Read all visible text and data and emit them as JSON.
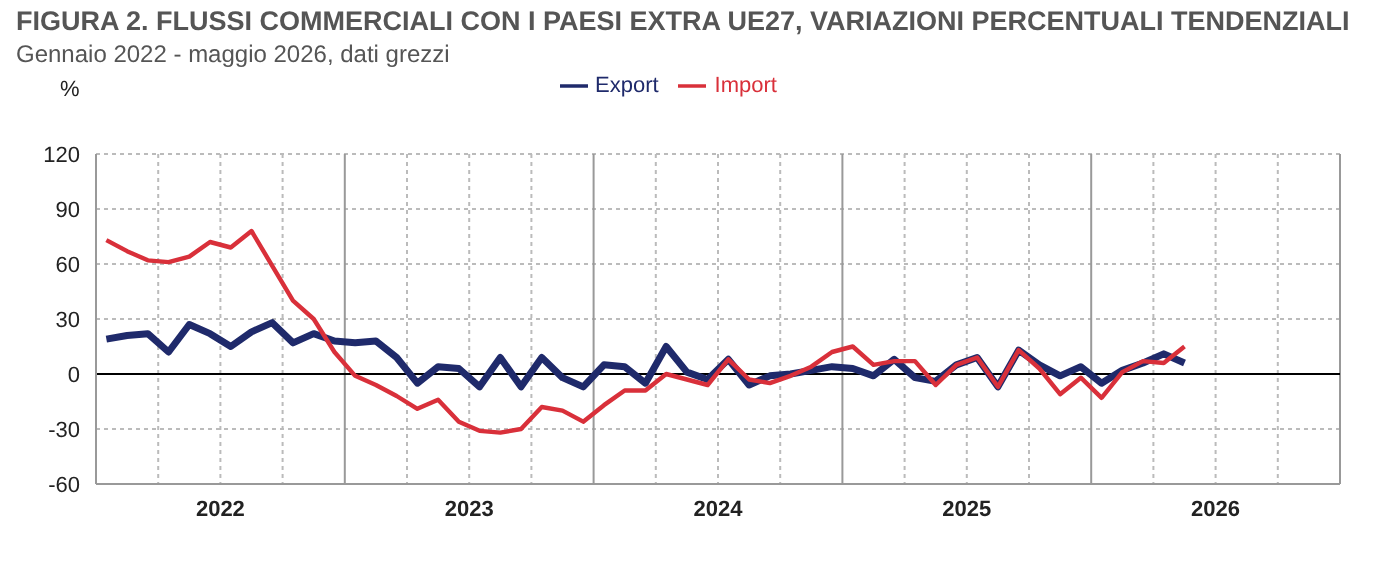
{
  "chart_data": {
    "type": "line",
    "title": "FIGURA 2. FLUSSI COMMERCIALI CON I PAESI EXTRA UE27, VARIAZIONI PERCENTUALI TENDENZIALI",
    "subtitle": "Gennaio 2022 - maggio 2026, dati grezzi",
    "ylabel": "%",
    "x": [
      "2022-01",
      "2022-02",
      "2022-03",
      "2022-04",
      "2022-05",
      "2022-06",
      "2022-07",
      "2022-08",
      "2022-09",
      "2022-10",
      "2022-11",
      "2022-12",
      "2023-01",
      "2023-02",
      "2023-03",
      "2023-04",
      "2023-05",
      "2023-06",
      "2023-07",
      "2023-08",
      "2023-09",
      "2023-10",
      "2023-11",
      "2023-12",
      "2024-01",
      "2024-02",
      "2024-03",
      "2024-04",
      "2024-05",
      "2024-06",
      "2024-07",
      "2024-08",
      "2024-09",
      "2024-10",
      "2024-11",
      "2024-12",
      "2025-01",
      "2025-02",
      "2025-03",
      "2025-04",
      "2025-05",
      "2025-06",
      "2025-07",
      "2025-08",
      "2025-09",
      "2025-10",
      "2025-11",
      "2025-12",
      "2026-01",
      "2026-02",
      "2026-03",
      "2026-04",
      "2026-05"
    ],
    "series": [
      {
        "name": "Export",
        "color": "#1f2a6b",
        "values": [
          19,
          21,
          22,
          12,
          27,
          22,
          15,
          23,
          28,
          17,
          22,
          18,
          17,
          18,
          9,
          -5,
          4,
          3,
          -7,
          9,
          -7,
          9,
          -2,
          -7,
          5,
          4,
          -5,
          15,
          1,
          -3,
          8,
          -6,
          -1,
          0,
          2,
          4,
          3,
          -1,
          8,
          -2,
          -4,
          5,
          9,
          -7,
          13,
          5,
          -1,
          4,
          -5,
          2,
          6,
          11,
          6
        ]
      },
      {
        "name": "Import",
        "color": "#d9303a",
        "values": [
          73,
          67,
          62,
          61,
          64,
          72,
          69,
          78,
          59,
          40,
          30,
          12,
          -1,
          -6,
          -12,
          -19,
          -14,
          -26,
          -31,
          -32,
          -30,
          -18,
          -20,
          -26,
          -17,
          -9,
          -9,
          0,
          -3,
          -6,
          8,
          -3,
          -5,
          -1,
          4,
          12,
          15,
          5,
          7,
          7,
          -6,
          5,
          9,
          -7,
          13,
          3,
          -11,
          -2,
          -13,
          1,
          7,
          6,
          15
        ]
      }
    ],
    "xlim": [
      "2021-12-16",
      "2026-12-16"
    ],
    "ref_lines": [
      {
        "axis": "y",
        "value": 0,
        "color": "#000000"
      }
    ],
    "xticks": [
      {
        "value": "2022-06-16",
        "label": "2022"
      },
      {
        "value": "2023-06-16",
        "label": "2023"
      },
      {
        "value": "2024-06-16",
        "label": "2024"
      },
      {
        "value": "2025-06-16",
        "label": "2025"
      },
      {
        "value": "2026-06-16",
        "label": "2026"
      }
    ],
    "ylim": [
      -60,
      120
    ],
    "yticks": [
      -60,
      -30,
      0,
      30,
      60,
      90,
      120
    ],
    "grid": true,
    "legend": "top",
    "marker": "none",
    "line_style": "solid"
  }
}
